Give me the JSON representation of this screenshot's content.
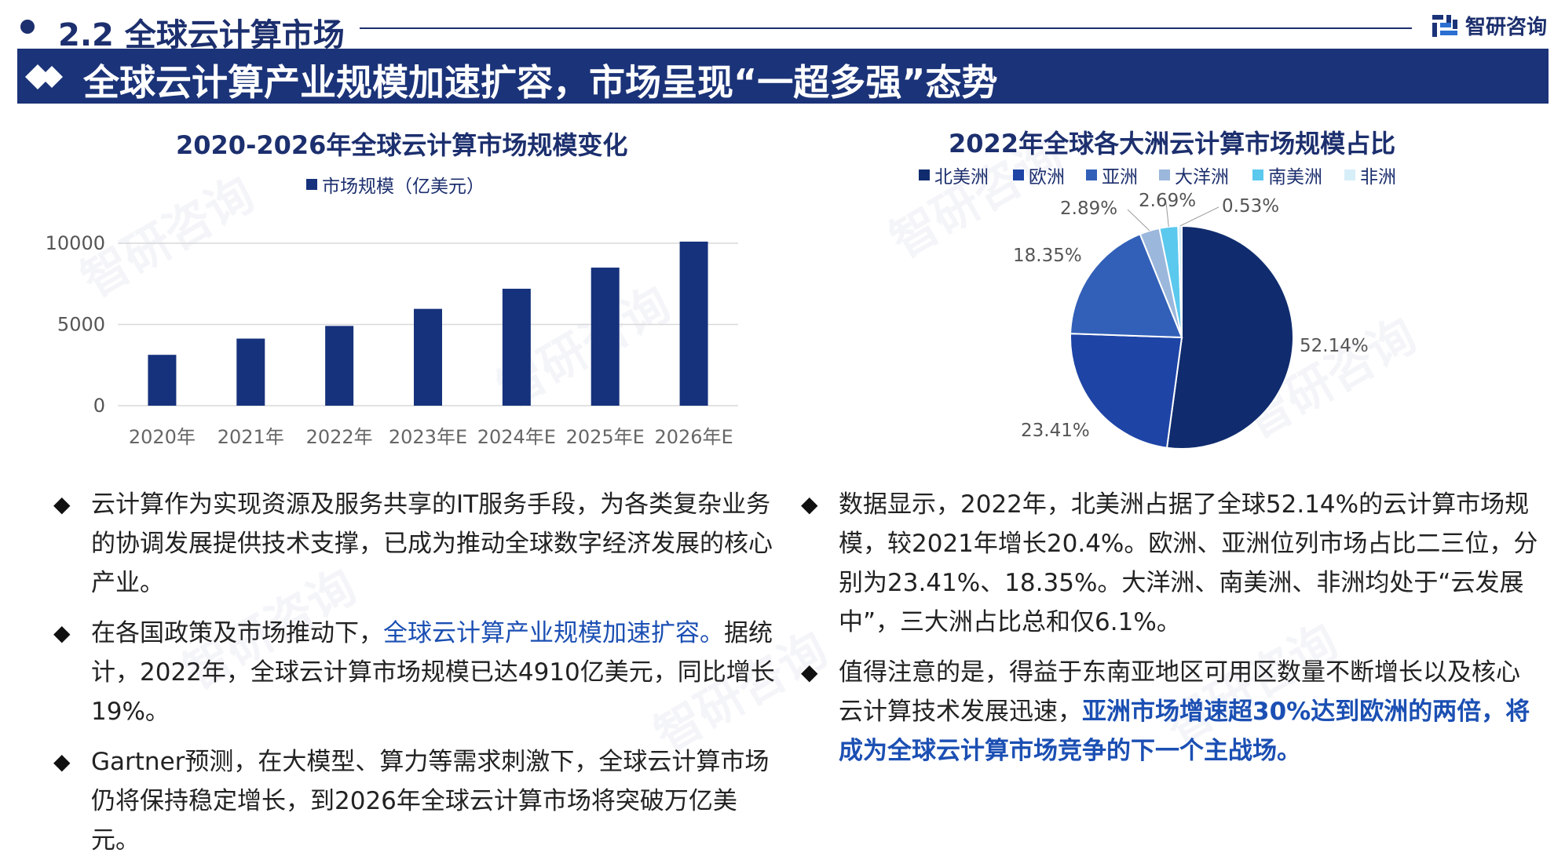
{
  "header": {
    "section_title": "2.2 全球云计算市场",
    "brand_name": "智研咨询",
    "banner_title": "全球云计算产业规模加速扩容，市场呈现“一超多强”态势"
  },
  "colors": {
    "navy": "#1b3378",
    "highlight": "#1b4fb3"
  },
  "chart_data": [
    {
      "type": "bar",
      "title": "2020-2026年全球云计算市场规模变化",
      "categories": [
        "2020年",
        "2021年",
        "2022年",
        "2023年E",
        "2024年E",
        "2025年E",
        "2026年E"
      ],
      "series": [
        {
          "name": "市场规模（亿美元）",
          "values": [
            3130,
            4130,
            4910,
            5960,
            7200,
            8500,
            10100
          ],
          "color": "#16327c"
        }
      ],
      "ylim": [
        0,
        10000
      ],
      "yticks": [
        "0",
        "5000",
        "10000"
      ],
      "grid": true,
      "legend": "top-center"
    },
    {
      "type": "pie",
      "title": "2022年全球各大洲云计算市场规模占比",
      "labels": [
        "北美洲",
        "欧洲",
        "亚洲",
        "大洋洲",
        "南美洲",
        "非洲"
      ],
      "values": [
        52.14,
        23.41,
        18.35,
        2.89,
        2.69,
        0.53
      ],
      "value_labels": [
        "52.14%",
        "23.41%",
        "18.35%",
        "2.89%",
        "2.69%",
        "0.53%"
      ],
      "colors": [
        "#102c6e",
        "#1e44a6",
        "#3260b8",
        "#9bb7dc",
        "#5bc8ee",
        "#d6eef8"
      ],
      "legend": "top"
    }
  ],
  "left_bullets": [
    {
      "parts": [
        {
          "text": "云计算作为实现资源及服务共享的IT服务手段，为各类复杂业务的协调发展提供技术支撑，已成为推动全球数字经济发展的核心产业。",
          "style": "normal"
        }
      ]
    },
    {
      "parts": [
        {
          "text": "在各国政策及市场推动下，",
          "style": "normal"
        },
        {
          "text": "全球云计算产业规模加速扩容。",
          "style": "hl"
        },
        {
          "text": "据统计，2022年，全球云计算市场规模已达4910亿美元，同比增长19%。",
          "style": "normal"
        }
      ]
    },
    {
      "parts": [
        {
          "text": "Gartner预测，在大模型、算力等需求刺激下，全球云计算市场仍将保持稳定增长，到2026年全球云计算市场将突破万亿美元。",
          "style": "normal"
        }
      ]
    }
  ],
  "right_bullets": [
    {
      "parts": [
        {
          "text": "数据显示，2022年，北美洲占据了全球52.14%的云计算市场规模，较2021年增长20.4%。欧洲、亚洲位列市场占比二三位，分别为23.41%、18.35%。大洋洲、南美洲、非洲均处于“云发展中”，三大洲占比总和仅6.1%。",
          "style": "normal"
        }
      ]
    },
    {
      "parts": [
        {
          "text": "值得注意的是，得益于东南亚地区可用区数量不断增长以及核心云计算技术发展迅速，",
          "style": "normal"
        },
        {
          "text": "亚洲市场增速超30%达到欧洲的两倍，将成为全球云计算市场竞争的下一个主战场。",
          "style": "hl-bold"
        }
      ]
    }
  ],
  "bullet_marker": "◆"
}
